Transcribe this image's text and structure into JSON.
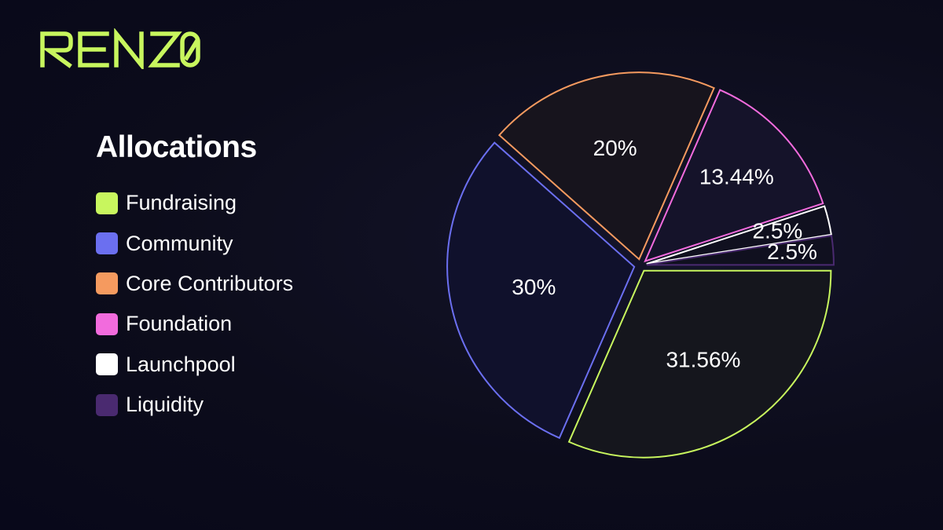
{
  "brand": {
    "logo_text": "RENZO",
    "accent": "#c8f65e"
  },
  "chart_data": {
    "type": "pie",
    "title": "Allocations",
    "legend_position": "left",
    "slices": [
      {
        "name": "Fundraising",
        "value": 31.56,
        "label": "31.56%",
        "color": "#c8f65e",
        "fill": "#15161d"
      },
      {
        "name": "Community",
        "value": 30,
        "label": "30%",
        "color": "#6b6ff0",
        "fill": "#10112c"
      },
      {
        "name": "Core Contributors",
        "value": 20,
        "label": "20%",
        "color": "#f59a5f",
        "fill": "#17141d"
      },
      {
        "name": "Foundation",
        "value": 13.44,
        "label": "13.44%",
        "color": "#f26bdd",
        "fill": "#15132a"
      },
      {
        "name": "Launchpool",
        "value": 2.5,
        "label": "2.5%",
        "color": "#ffffff",
        "fill": "#10101f"
      },
      {
        "name": "Liquidity",
        "value": 2.5,
        "label": "2.5%",
        "color": "#4a2a70",
        "fill": "#10101f"
      }
    ],
    "legend_order": [
      "Fundraising",
      "Community",
      "Core Contributors",
      "Foundation",
      "Launchpool",
      "Liquidity"
    ]
  }
}
